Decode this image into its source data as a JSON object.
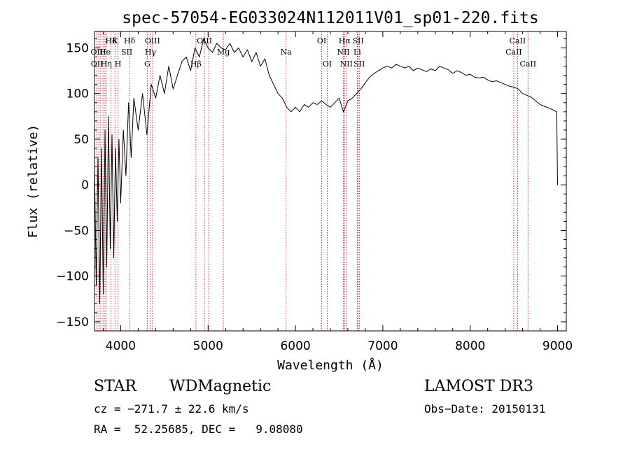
{
  "chart_data": {
    "type": "line",
    "title": "spec-57054-EG033024N112011V01_sp01-220.fits",
    "xlabel": "Wavelength (Å)",
    "ylabel": "Flux (relative)",
    "xlim": [
      3700,
      9100
    ],
    "ylim": [
      -160,
      168
    ],
    "xticks": [
      4000,
      5000,
      6000,
      7000,
      8000,
      9000
    ],
    "xtick_labels": [
      "4000",
      "5000",
      "6000",
      "7000",
      "8000",
      "9000"
    ],
    "yticks": [
      -150,
      -100,
      -50,
      0,
      50,
      100,
      150
    ],
    "ytick_labels": [
      "−150",
      "−100",
      "−50",
      "0",
      "50",
      "100",
      "150"
    ],
    "grid": false,
    "series": [
      {
        "name": "spectrum",
        "x": [
          3700,
          3720,
          3740,
          3760,
          3780,
          3800,
          3820,
          3840,
          3860,
          3880,
          3900,
          3920,
          3940,
          3960,
          3980,
          4000,
          4030,
          4060,
          4090,
          4120,
          4150,
          4200,
          4250,
          4300,
          4350,
          4400,
          4450,
          4500,
          4550,
          4600,
          4650,
          4700,
          4750,
          4800,
          4850,
          4900,
          4950,
          5000,
          5050,
          5100,
          5150,
          5200,
          5250,
          5300,
          5350,
          5400,
          5450,
          5500,
          5550,
          5600,
          5650,
          5700,
          5750,
          5800,
          5850,
          5900,
          5950,
          6000,
          6050,
          6100,
          6150,
          6200,
          6250,
          6300,
          6350,
          6400,
          6450,
          6500,
          6550,
          6600,
          6650,
          6700,
          6750,
          6800,
          6850,
          6900,
          6950,
          7000,
          7050,
          7100,
          7150,
          7200,
          7250,
          7300,
          7350,
          7400,
          7450,
          7500,
          7550,
          7600,
          7650,
          7700,
          7750,
          7800,
          7850,
          7900,
          7950,
          8000,
          8050,
          8100,
          8150,
          8200,
          8250,
          8300,
          8350,
          8400,
          8450,
          8500,
          8550,
          8600,
          8650,
          8700,
          8750,
          8800,
          8850,
          8900,
          8950,
          8990,
          9000
        ],
        "values": [
          20,
          -110,
          30,
          -130,
          40,
          -120,
          60,
          -90,
          75,
          -70,
          55,
          -80,
          40,
          -40,
          50,
          -20,
          60,
          10,
          90,
          30,
          95,
          60,
          100,
          55,
          110,
          95,
          120,
          100,
          130,
          105,
          120,
          135,
          140,
          125,
          150,
          140,
          160,
          150,
          145,
          155,
          150,
          148,
          155,
          145,
          150,
          140,
          148,
          135,
          145,
          130,
          138,
          120,
          110,
          100,
          95,
          85,
          80,
          85,
          80,
          88,
          85,
          90,
          88,
          92,
          88,
          85,
          90,
          95,
          80,
          92,
          95,
          100,
          105,
          112,
          118,
          122,
          125,
          128,
          130,
          128,
          132,
          130,
          128,
          130,
          125,
          128,
          126,
          124,
          127,
          125,
          130,
          128,
          126,
          122,
          125,
          123,
          120,
          121,
          118,
          117,
          118,
          115,
          113,
          114,
          112,
          110,
          108,
          107,
          105,
          100,
          98,
          96,
          92,
          88,
          86,
          84,
          82,
          80,
          0
        ]
      }
    ],
    "line_labels": [
      {
        "text": "Hδ",
        "x": 3889,
        "row": 0
      },
      {
        "text": "K",
        "x": 3934,
        "row": 0
      },
      {
        "text": "Hδ",
        "x": 4101,
        "row": 0
      },
      {
        "text": "OIII",
        "x": 4363,
        "row": 0
      },
      {
        "text": "OIII",
        "x": 4959,
        "row": 0
      },
      {
        "text": "OI",
        "x": 6300,
        "row": 0
      },
      {
        "text": "Hα",
        "x": 6563,
        "row": 0
      },
      {
        "text": "SII",
        "x": 6717,
        "row": 0
      },
      {
        "text": "CaII",
        "x": 8542,
        "row": 0
      },
      {
        "text": "OII",
        "x": 3727,
        "row": 1
      },
      {
        "text": "He",
        "x": 3820,
        "row": 1
      },
      {
        "text": "SII",
        "x": 4069,
        "row": 1
      },
      {
        "text": "Hγ",
        "x": 4340,
        "row": 1
      },
      {
        "text": "Mg",
        "x": 5175,
        "row": 1
      },
      {
        "text": "Na",
        "x": 5893,
        "row": 1
      },
      {
        "text": "NII",
        "x": 6548,
        "row": 1
      },
      {
        "text": "Li",
        "x": 6708,
        "row": 1
      },
      {
        "text": "CaII",
        "x": 8498,
        "row": 1
      },
      {
        "text": "OII",
        "x": 3729,
        "row": 2
      },
      {
        "text": "Hη",
        "x": 3835,
        "row": 2
      },
      {
        "text": "H",
        "x": 3968,
        "row": 2
      },
      {
        "text": "G",
        "x": 4304,
        "row": 2
      },
      {
        "text": "Hβ",
        "x": 4861,
        "row": 2
      },
      {
        "text": "OI",
        "x": 6364,
        "row": 2
      },
      {
        "text": "NII",
        "x": 6583,
        "row": 2
      },
      {
        "text": "SII",
        "x": 6731,
        "row": 2
      },
      {
        "text": "CaII",
        "x": 8662,
        "row": 2
      }
    ],
    "line_wavelengths": [
      3727,
      3750,
      3771,
      3798,
      3820,
      3835,
      3889,
      3934,
      3968,
      4101,
      4304,
      4340,
      4363,
      4861,
      4959,
      5007,
      5175,
      5893,
      6300,
      6364,
      6548,
      6563,
      6583,
      6708,
      6717,
      6731,
      8498,
      8542,
      8662
    ]
  },
  "footer": {
    "class": "STAR",
    "subclass": "WDMagnetic",
    "survey": "LAMOST DR3",
    "cz": "cz = −271.7 ± 22.6 km/s",
    "obs_date": "Obs−Date: 20150131",
    "coords": "RA =  52.25685, DEC =   9.08080"
  },
  "colors": {
    "line": "#000000",
    "marker": "#cc0000",
    "axis": "#000000"
  }
}
